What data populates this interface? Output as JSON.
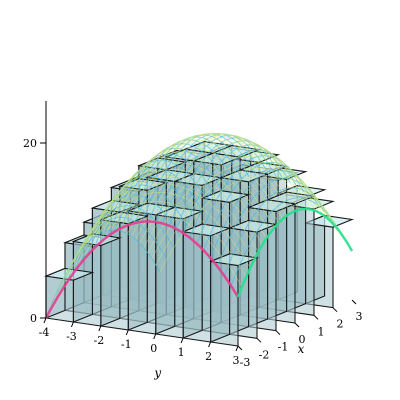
{
  "chart_data": {
    "type": "3d-surface-with-riemann-boxes",
    "title": "",
    "xlabel": "x",
    "ylabel": "y",
    "zlabel": "",
    "x_range": [
      -3,
      3
    ],
    "y_range": [
      -4,
      3
    ],
    "z_range": [
      0,
      25
    ],
    "z_axis_ticks": [
      "0",
      "20"
    ],
    "x_axis_ticks": [
      "-3",
      "-2",
      "-1",
      "0",
      "1",
      "2",
      "3"
    ],
    "y_axis_ticks": [
      "-4",
      "-3",
      "-2",
      "-1",
      "0",
      "1",
      "2",
      "3"
    ],
    "surface": {
      "expression": "z = 25 - x^2 - y^2 (estimated)",
      "colors": [
        "#e8348f",
        "#b36bff",
        "#5aa9ff",
        "#22e08a",
        "#e6f05a"
      ],
      "peak": 25
    },
    "boxes": {
      "cell_size": 1,
      "fill": "#bfe3e8",
      "stroke": "#1a1a1a",
      "heights_note": "box heights approximate surface values on a unit grid"
    }
  }
}
